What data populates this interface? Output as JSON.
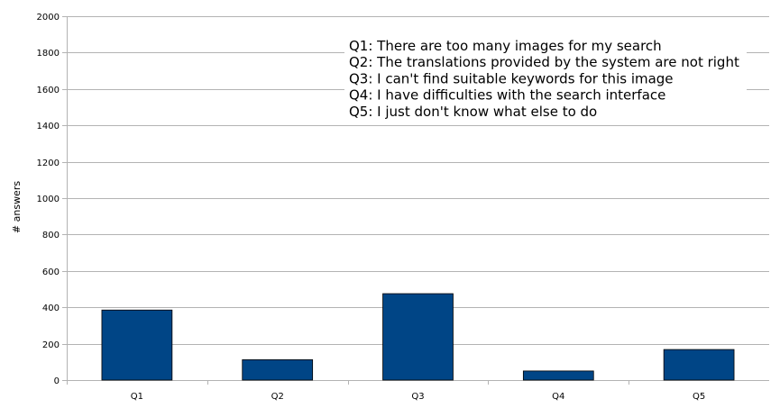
{
  "chart_data": {
    "type": "bar",
    "categories": [
      "Q1",
      "Q2",
      "Q3",
      "Q4",
      "Q5"
    ],
    "values": [
      385,
      112,
      475,
      50,
      168
    ],
    "title": "",
    "xlabel": "",
    "ylabel": "# answers",
    "ylim": [
      0,
      2000
    ],
    "yticks": [
      0,
      200,
      400,
      600,
      800,
      1000,
      1200,
      1400,
      1600,
      1800,
      2000
    ],
    "grid": true,
    "legend_position": "top-right",
    "annotation_lines": [
      "Q1: There are too many images for my search",
      "Q2: The translations provided by the system are not right",
      "Q3: I can't find suitable keywords for this image",
      "Q4: I have difficulties with the search interface",
      "Q5: I just don't know what else to do"
    ],
    "bar_color": "#004586",
    "grid_color": "#b3b3b3"
  }
}
